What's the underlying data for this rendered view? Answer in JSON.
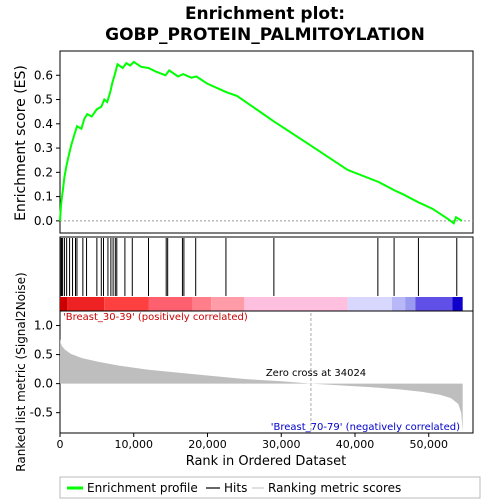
{
  "chart_data": {
    "type": "line",
    "title_line1": "Enrichment plot:",
    "title_line2": "GOBP_PROTEIN_PALMITOYLATION",
    "es_panel": {
      "ylabel": "Enrichment score (ES)",
      "ylim": [
        -0.05,
        0.7
      ],
      "yticks": [
        0.0,
        0.1,
        0.2,
        0.3,
        0.4,
        0.5,
        0.6
      ],
      "ytick_labels": [
        "0.0",
        "0.1",
        "0.2",
        "0.3",
        "0.4",
        "0.5",
        "0.6"
      ],
      "line_color": "#00ff00",
      "points": [
        [
          0,
          0.0
        ],
        [
          150,
          0.07
        ],
        [
          400,
          0.13
        ],
        [
          600,
          0.18
        ],
        [
          900,
          0.23
        ],
        [
          1200,
          0.27
        ],
        [
          1500,
          0.31
        ],
        [
          1900,
          0.35
        ],
        [
          2300,
          0.39
        ],
        [
          2900,
          0.38
        ],
        [
          3300,
          0.42
        ],
        [
          3700,
          0.44
        ],
        [
          4300,
          0.43
        ],
        [
          5000,
          0.46
        ],
        [
          5600,
          0.47
        ],
        [
          6000,
          0.5
        ],
        [
          6400,
          0.49
        ],
        [
          6800,
          0.53
        ],
        [
          7100,
          0.57
        ],
        [
          7400,
          0.6
        ],
        [
          7800,
          0.645
        ],
        [
          8500,
          0.63
        ],
        [
          9000,
          0.65
        ],
        [
          9500,
          0.64
        ],
        [
          10000,
          0.655
        ],
        [
          11000,
          0.635
        ],
        [
          12000,
          0.63
        ],
        [
          13000,
          0.615
        ],
        [
          14300,
          0.6
        ],
        [
          14800,
          0.62
        ],
        [
          16000,
          0.595
        ],
        [
          16700,
          0.605
        ],
        [
          17800,
          0.59
        ],
        [
          18500,
          0.595
        ],
        [
          20000,
          0.565
        ],
        [
          22600,
          0.53
        ],
        [
          24000,
          0.515
        ],
        [
          29000,
          0.41
        ],
        [
          34000,
          0.31
        ],
        [
          39000,
          0.21
        ],
        [
          43200,
          0.16
        ],
        [
          45400,
          0.125
        ],
        [
          46500,
          0.11
        ],
        [
          48700,
          0.075
        ],
        [
          50500,
          0.05
        ],
        [
          52500,
          0.01
        ],
        [
          53400,
          -0.01
        ],
        [
          53700,
          0.015
        ],
        [
          54500,
          0.0
        ]
      ]
    },
    "hits": [
      50,
      200,
      350,
      600,
      900,
      1300,
      1700,
      2100,
      2300,
      3100,
      3600,
      5000,
      5600,
      5900,
      6500,
      6900,
      7200,
      7500,
      7700,
      8800,
      9800,
      12000,
      14400,
      14600,
      16600,
      16800,
      18400,
      22500,
      29000,
      43100,
      45300,
      48600,
      53800
    ],
    "colorbar": {
      "segments": [
        {
          "from": 0,
          "to": 1000,
          "color": "#cc0000"
        },
        {
          "from": 1000,
          "to": 6000,
          "color": "#ee2222"
        },
        {
          "from": 6000,
          "to": 12000,
          "color": "#ff4040"
        },
        {
          "from": 12000,
          "to": 18000,
          "color": "#ff6070"
        },
        {
          "from": 18000,
          "to": 20500,
          "color": "#ff7e8a"
        },
        {
          "from": 20500,
          "to": 25000,
          "color": "#ff9ca8"
        },
        {
          "from": 25000,
          "to": 39000,
          "color": "#ffc0e0"
        },
        {
          "from": 39000,
          "to": 45000,
          "color": "#d8d8ff"
        },
        {
          "from": 45000,
          "to": 46800,
          "color": "#b8b8f8"
        },
        {
          "from": 46800,
          "to": 48200,
          "color": "#9a9af0"
        },
        {
          "from": 48200,
          "to": 53200,
          "color": "#6050e8"
        },
        {
          "from": 53200,
          "to": 54600,
          "color": "#1000cc"
        }
      ]
    },
    "metric_panel": {
      "ylabel": "Ranked list metric (Signal2Noise)",
      "ylim": [
        -0.85,
        1.25
      ],
      "yticks": [
        -0.5,
        0.0,
        0.5,
        1.0
      ],
      "ytick_labels": [
        "-0.5",
        "0.0",
        "0.5",
        "1.0"
      ],
      "curve": [
        [
          0,
          0.78
        ],
        [
          100,
          0.7
        ],
        [
          300,
          0.64
        ],
        [
          700,
          0.58
        ],
        [
          1500,
          0.51
        ],
        [
          3000,
          0.44
        ],
        [
          5000,
          0.38
        ],
        [
          8000,
          0.31
        ],
        [
          12000,
          0.24
        ],
        [
          16000,
          0.19
        ],
        [
          20000,
          0.14
        ],
        [
          25000,
          0.08
        ],
        [
          30000,
          0.04
        ],
        [
          34024,
          0.0
        ],
        [
          38000,
          -0.03
        ],
        [
          42000,
          -0.06
        ],
        [
          46000,
          -0.1
        ],
        [
          49000,
          -0.14
        ],
        [
          51500,
          -0.19
        ],
        [
          53000,
          -0.25
        ],
        [
          54000,
          -0.35
        ],
        [
          54400,
          -0.5
        ],
        [
          54600,
          -0.82
        ]
      ],
      "fill_color": "#bebebe",
      "zero_cross_label": "Zero cross at 34024",
      "zero_cross_rank": 34024,
      "positive_label": "'Breast_30-39' (positively correlated)",
      "negative_label": "'Breast_70-79' (negatively correlated)"
    },
    "xaxis": {
      "xlabel": "Rank in Ordered Dataset",
      "xlim": [
        0,
        56000
      ],
      "xticks": [
        0,
        10000,
        20000,
        30000,
        40000,
        50000
      ],
      "xtick_labels": [
        "0",
        "10,000",
        "20,000",
        "30,000",
        "40,000",
        "50,000"
      ]
    },
    "legend": {
      "placement": "bottom",
      "entries": [
        {
          "label": "Enrichment profile",
          "color": "#00ff00",
          "style": "thick-line"
        },
        {
          "label": "Hits",
          "color": "#000000",
          "style": "line"
        },
        {
          "label": "Ranking metric scores",
          "color": "#cccccc",
          "style": "line"
        }
      ]
    }
  }
}
